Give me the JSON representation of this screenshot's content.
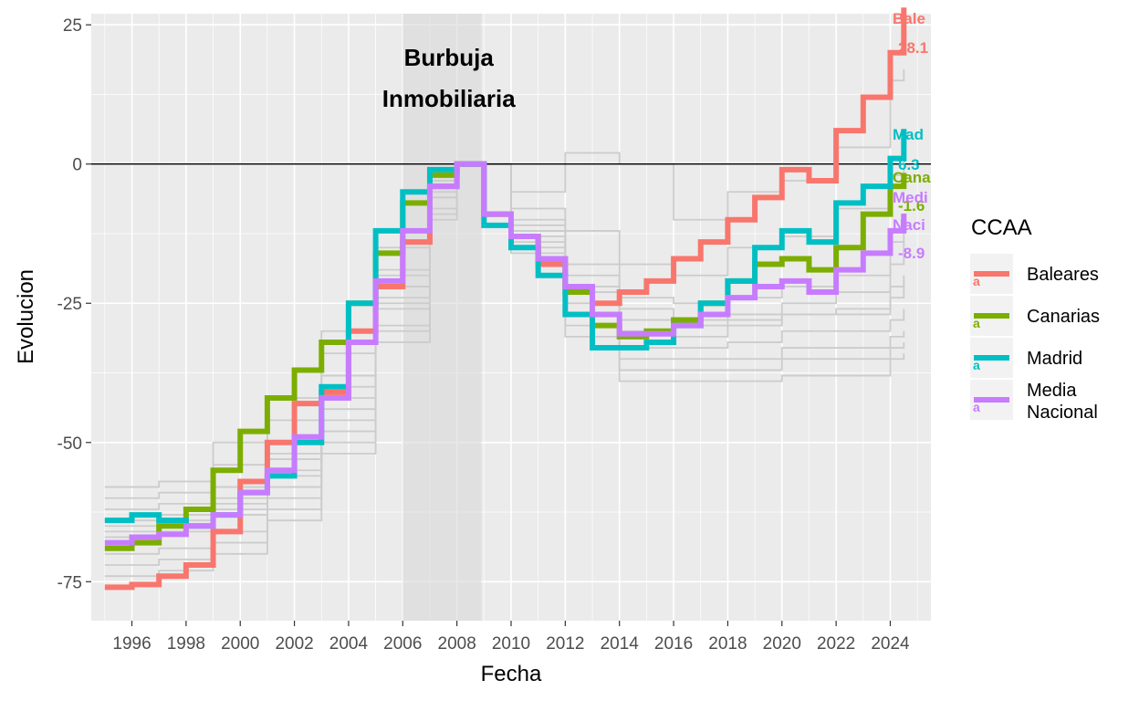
{
  "chart_data": {
    "type": "line",
    "xlabel": "Fecha",
    "ylabel": "Evolucion",
    "xlim": [
      1994.5,
      2025.5
    ],
    "ylim": [
      -82,
      27
    ],
    "x_ticks": [
      1996,
      1998,
      2000,
      2002,
      2004,
      2006,
      2008,
      2010,
      2012,
      2014,
      2016,
      2018,
      2020,
      2022,
      2024
    ],
    "x_tick_labels": [
      "1996",
      "1998",
      "2000",
      "2002",
      "2004",
      "2006",
      "2008",
      "2010",
      "2012",
      "2014",
      "2016",
      "2018",
      "2020",
      "2022",
      "2024"
    ],
    "y_ticks": [
      -75,
      -50,
      -25,
      0,
      25
    ],
    "y_tick_labels": [
      "-75",
      "-50",
      "-25",
      "0",
      "25"
    ],
    "grid": true,
    "reference_line_y": 0,
    "annotation": {
      "text_line1": "Burbuja",
      "text_line2": "Inmobiliaria",
      "shaded_x_range": [
        2006,
        2008.9
      ]
    },
    "legend": {
      "title": "CCAA",
      "placement": "right"
    },
    "series": [
      {
        "name": "Baleares",
        "color": "#F8766D",
        "end_name_label": "Bale",
        "end_value_label": "28.1",
        "x": [
          1995,
          1996,
          1997,
          1998,
          1999,
          2000,
          2001,
          2002,
          2003,
          2004,
          2005,
          2006,
          2007,
          2008,
          2009,
          2010,
          2011,
          2012,
          2013,
          2014,
          2015,
          2016,
          2017,
          2018,
          2019,
          2020,
          2021,
          2022,
          2023,
          2024,
          2024.5
        ],
        "y": [
          -76,
          -75.5,
          -74,
          -72,
          -66,
          -57,
          -50,
          -43,
          -41,
          -30,
          -22,
          -14,
          -4,
          0,
          -9,
          -13,
          -18,
          -22,
          -25,
          -23,
          -21,
          -17,
          -14,
          -10,
          -6,
          -1,
          -3,
          6,
          12,
          20,
          28.1
        ]
      },
      {
        "name": "Canarias",
        "color": "#7CAE00",
        "end_name_label": "Cana",
        "end_value_label": "-1.6",
        "x": [
          1995,
          1996,
          1997,
          1998,
          1999,
          2000,
          2001,
          2002,
          2003,
          2004,
          2005,
          2006,
          2007,
          2008,
          2009,
          2010,
          2011,
          2012,
          2013,
          2014,
          2015,
          2016,
          2017,
          2018,
          2019,
          2020,
          2021,
          2022,
          2023,
          2024,
          2024.5
        ],
        "y": [
          -69,
          -68,
          -65,
          -62,
          -55,
          -48,
          -42,
          -37,
          -32,
          -25,
          -16,
          -7,
          -2,
          0,
          -9,
          -13,
          -17,
          -23,
          -29,
          -31,
          -30,
          -28,
          -25,
          -21,
          -18,
          -17,
          -19,
          -15,
          -9,
          -4,
          -1.6
        ]
      },
      {
        "name": "Madrid",
        "color": "#00BFC4",
        "end_name_label": "Mad",
        "end_value_label": "6.3",
        "x": [
          1995,
          1996,
          1997,
          1998,
          1999,
          2000,
          2001,
          2002,
          2003,
          2004,
          2005,
          2006,
          2007,
          2008,
          2009,
          2010,
          2011,
          2012,
          2013,
          2014,
          2015,
          2016,
          2017,
          2018,
          2019,
          2020,
          2021,
          2022,
          2023,
          2024,
          2024.5
        ],
        "y": [
          -64,
          -63,
          -64,
          -65,
          -63,
          -59,
          -56,
          -50,
          -40,
          -25,
          -12,
          -5,
          -1,
          0,
          -11,
          -15,
          -20,
          -27,
          -33,
          -33,
          -32,
          -29,
          -25,
          -21,
          -15,
          -12,
          -14,
          -7,
          -4,
          1,
          6.3
        ]
      },
      {
        "name": "Media Nacional",
        "color": "#C77CFF",
        "end_name_label": "Naci",
        "end_value_label": "-8.9",
        "x": [
          1995,
          1996,
          1997,
          1998,
          1999,
          2000,
          2001,
          2002,
          2003,
          2004,
          2005,
          2006,
          2007,
          2008,
          2009,
          2010,
          2011,
          2012,
          2013,
          2014,
          2015,
          2016,
          2017,
          2018,
          2019,
          2020,
          2021,
          2022,
          2023,
          2024,
          2024.5
        ],
        "y": [
          -68,
          -67,
          -66.5,
          -65,
          -63,
          -59,
          -55,
          -49,
          -42,
          -32,
          -21,
          -12,
          -4,
          0,
          -9,
          -13,
          -17,
          -22,
          -27,
          -30.5,
          -30.5,
          -29,
          -27,
          -24,
          -22,
          -21,
          -23,
          -19,
          -16,
          -12,
          -8.9
        ]
      },
      {
        "name": "Media Nacional",
        "display_label": "Medi",
        "color": "#C77CFF",
        "end_name_label": "Medi",
        "x": [],
        "y": []
      }
    ],
    "background_series": [
      {
        "name": "",
        "color": "#cccccc",
        "x": [
          1995,
          1997,
          1999,
          2001,
          2003,
          2005,
          2007,
          2008,
          2010,
          2012,
          2014,
          2016,
          2018,
          2020,
          2022,
          2024,
          2024.5
        ],
        "y": [
          -58,
          -57,
          -50,
          -42,
          -30,
          -15,
          -2,
          0,
          -5,
          2,
          0,
          -10,
          -5,
          -3,
          3,
          15,
          17
        ]
      },
      {
        "name": "",
        "color": "#cccccc",
        "x": [
          1995,
          1997,
          1999,
          2001,
          2003,
          2005,
          2007,
          2008,
          2010,
          2012,
          2014,
          2016,
          2018,
          2020,
          2022,
          2024,
          2024.5
        ],
        "y": [
          -60,
          -59,
          -54,
          -46,
          -34,
          -19,
          -4,
          0,
          -8,
          -12,
          -18,
          -20,
          -15,
          -13,
          -8,
          -2,
          -1
        ]
      },
      {
        "name": "",
        "color": "#cccccc",
        "x": [
          1995,
          1997,
          1999,
          2001,
          2003,
          2005,
          2007,
          2008,
          2010,
          2012,
          2014,
          2016,
          2018,
          2020,
          2022,
          2024,
          2024.5
        ],
        "y": [
          -62,
          -61,
          -58,
          -52,
          -38,
          -20,
          -3,
          0,
          -10,
          -18,
          -26,
          -28,
          -27,
          -25,
          -23,
          -18,
          -14
        ]
      },
      {
        "name": "",
        "color": "#cccccc",
        "x": [
          1995,
          1997,
          1999,
          2001,
          2003,
          2005,
          2007,
          2008,
          2010,
          2012,
          2014,
          2016,
          2018,
          2020,
          2022,
          2024,
          2024.5
        ],
        "y": [
          -65,
          -64,
          -61,
          -56,
          -44,
          -25,
          -5,
          0,
          -12,
          -22,
          -30,
          -31,
          -29,
          -27,
          -27,
          -24,
          -21
        ]
      },
      {
        "name": "",
        "color": "#cccccc",
        "x": [
          1995,
          1997,
          1999,
          2001,
          2003,
          2005,
          2007,
          2008,
          2010,
          2012,
          2014,
          2016,
          2018,
          2020,
          2022,
          2024,
          2024.5
        ],
        "y": [
          -67,
          -66,
          -63,
          -58,
          -46,
          -26,
          -6,
          0,
          -13,
          -25,
          -33,
          -33,
          -32,
          -30,
          -30,
          -28,
          -26
        ]
      },
      {
        "name": "",
        "color": "#cccccc",
        "x": [
          1995,
          1997,
          1999,
          2001,
          2003,
          2005,
          2007,
          2008,
          2010,
          2012,
          2014,
          2016,
          2018,
          2020,
          2022,
          2024,
          2024.5
        ],
        "y": [
          -70,
          -69,
          -66,
          -60,
          -48,
          -29,
          -8,
          0,
          -14,
          -27,
          -35,
          -35,
          -35,
          -33,
          -33,
          -31,
          -30
        ]
      },
      {
        "name": "",
        "color": "#cccccc",
        "x": [
          1995,
          1997,
          1999,
          2001,
          2003,
          2005,
          2007,
          2008,
          2010,
          2012,
          2014,
          2016,
          2018,
          2020,
          2022,
          2024,
          2024.5
        ],
        "y": [
          -72,
          -71,
          -68,
          -62,
          -50,
          -30,
          -9,
          0,
          -15,
          -29,
          -37,
          -37,
          -37,
          -35,
          -35,
          -33,
          -32
        ]
      },
      {
        "name": "",
        "color": "#cccccc",
        "x": [
          1995,
          1997,
          1999,
          2001,
          2003,
          2005,
          2007,
          2008,
          2010,
          2012,
          2014,
          2016,
          2018,
          2020,
          2022,
          2024,
          2024.5
        ],
        "y": [
          -74,
          -73,
          -70,
          -64,
          -52,
          -32,
          -10,
          0,
          -16,
          -31,
          -39,
          -39,
          -39,
          -38,
          -38,
          -35,
          -34
        ]
      },
      {
        "name": "",
        "color": "#cccccc",
        "x": [
          1995,
          1997,
          1999,
          2001,
          2003,
          2005,
          2007,
          2008,
          2010,
          2012,
          2014,
          2016,
          2018,
          2020,
          2022,
          2024,
          2024.5
        ],
        "y": [
          -64,
          -63,
          -60,
          -53,
          -40,
          -22,
          -5,
          0,
          -11,
          -20,
          -24,
          -25,
          -24,
          -22,
          -20,
          -14,
          -12
        ]
      },
      {
        "name": "",
        "color": "#cccccc",
        "x": [
          1995,
          1997,
          1999,
          2001,
          2003,
          2005,
          2007,
          2008,
          2010,
          2012,
          2014,
          2016,
          2018,
          2020,
          2022,
          2024,
          2024.5
        ],
        "y": [
          -66,
          -65,
          -62,
          -55,
          -42,
          -24,
          -6,
          0,
          -12,
          -23,
          -28,
          -29,
          -28,
          -27,
          -26,
          -22,
          -20
        ]
      }
    ]
  }
}
